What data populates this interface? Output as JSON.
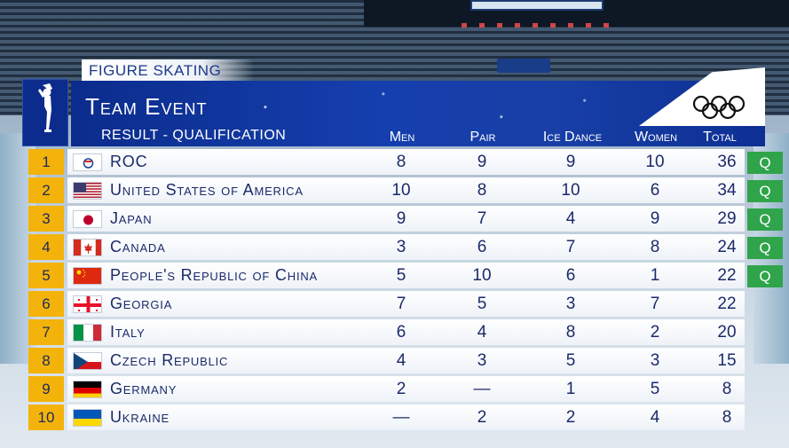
{
  "header": {
    "sport": "Figure Skating",
    "event": "Team Event",
    "result_label": "Result - Qualification",
    "columns": {
      "men": "Men",
      "pair": "Pair",
      "ice_dance": "Ice Dance",
      "women": "Women",
      "total": "Total"
    }
  },
  "qualified_badge": "Q",
  "colors": {
    "rank_badge": "#f4b30a",
    "header_blue": "#153fae",
    "qualified": "#2fa44a",
    "text_navy": "#1b2a6a"
  },
  "rows": [
    {
      "rank": "1",
      "flag": "roc-flag-icon",
      "nation": "ROC",
      "men": "8",
      "pair": "9",
      "ice_dance": "9",
      "women": "10",
      "total": "36",
      "qualified": true
    },
    {
      "rank": "2",
      "flag": "usa-flag-icon",
      "nation": "United States of America",
      "men": "10",
      "pair": "8",
      "ice_dance": "10",
      "women": "6",
      "total": "34",
      "qualified": true
    },
    {
      "rank": "3",
      "flag": "japan-flag-icon",
      "nation": "Japan",
      "men": "9",
      "pair": "7",
      "ice_dance": "4",
      "women": "9",
      "total": "29",
      "qualified": true
    },
    {
      "rank": "4",
      "flag": "canada-flag-icon",
      "nation": "Canada",
      "men": "3",
      "pair": "6",
      "ice_dance": "7",
      "women": "8",
      "total": "24",
      "qualified": true
    },
    {
      "rank": "5",
      "flag": "china-flag-icon",
      "nation": "People's Republic of China",
      "men": "5",
      "pair": "10",
      "ice_dance": "6",
      "women": "1",
      "total": "22",
      "qualified": true
    },
    {
      "rank": "6",
      "flag": "georgia-flag-icon",
      "nation": "Georgia",
      "men": "7",
      "pair": "5",
      "ice_dance": "3",
      "women": "7",
      "total": "22",
      "qualified": false
    },
    {
      "rank": "7",
      "flag": "italy-flag-icon",
      "nation": "Italy",
      "men": "6",
      "pair": "4",
      "ice_dance": "8",
      "women": "2",
      "total": "20",
      "qualified": false
    },
    {
      "rank": "8",
      "flag": "czech-flag-icon",
      "nation": "Czech Republic",
      "men": "4",
      "pair": "3",
      "ice_dance": "5",
      "women": "3",
      "total": "15",
      "qualified": false
    },
    {
      "rank": "9",
      "flag": "germany-flag-icon",
      "nation": "Germany",
      "men": "2",
      "pair": "—",
      "ice_dance": "1",
      "women": "5",
      "total": "8",
      "qualified": false
    },
    {
      "rank": "10",
      "flag": "ukraine-flag-icon",
      "nation": "Ukraine",
      "men": "—",
      "pair": "2",
      "ice_dance": "2",
      "women": "4",
      "total": "8",
      "qualified": false
    }
  ]
}
